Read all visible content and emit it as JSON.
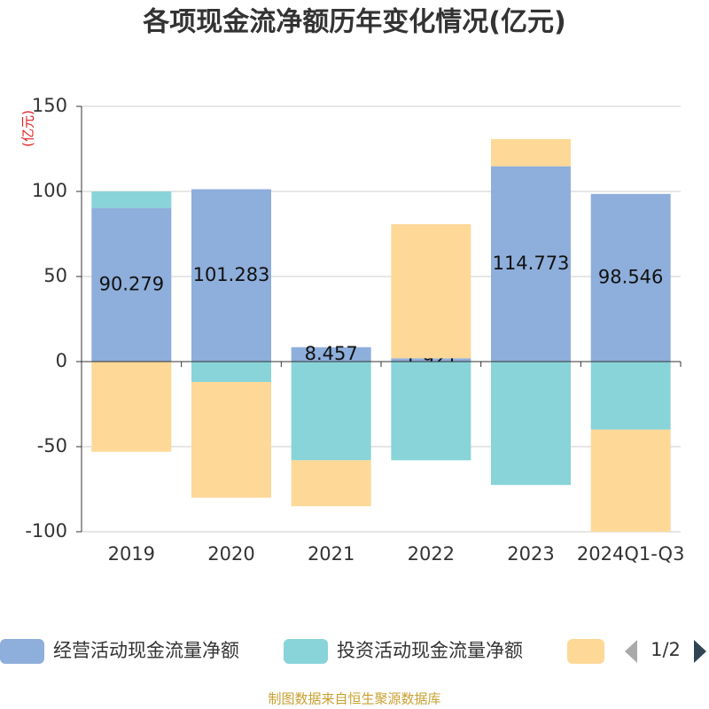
{
  "chart_data": {
    "type": "bar",
    "stacked": true,
    "title": "各项现金流净额历年变化情况(亿元)",
    "y_label": "(亿元)",
    "source": "制图数据来自恒生聚源数据库",
    "legend_page": "1/2",
    "categories": [
      "2019",
      "2020",
      "2021",
      "2022",
      "2023",
      "2024Q1-Q3"
    ],
    "series": [
      {
        "name": "经营活动现金流量净额",
        "color": "#8eaedb",
        "values": [
          90.279,
          101.283,
          8.457,
          1.921,
          114.773,
          98.546
        ],
        "show_labels": true
      },
      {
        "name": "投资活动现金流量净额",
        "color": "#88d4d8",
        "values": [
          9.7,
          -12,
          -58,
          -58,
          -72.5,
          -40
        ]
      },
      {
        "color": "#fdd897",
        "values": [
          -53,
          -68,
          -27,
          78.8,
          16,
          -60
        ]
      }
    ],
    "ylim": [
      -100,
      150
    ],
    "yticks": [
      -100,
      -50,
      0,
      50,
      100,
      150
    ],
    "grid": true
  }
}
